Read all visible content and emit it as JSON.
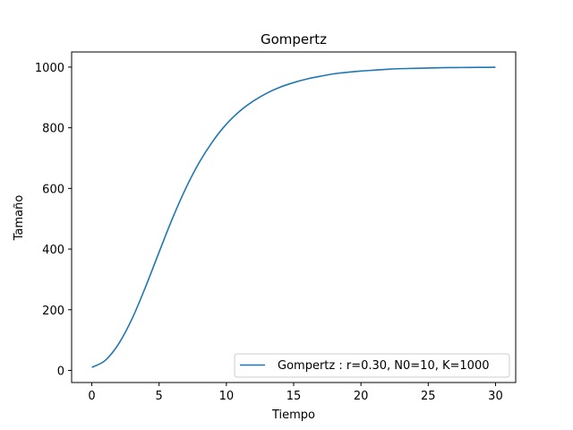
{
  "chart_data": {
    "type": "line",
    "title": "Gompertz",
    "xlabel": "Tiempo",
    "ylabel": "Tamaño",
    "xlim": [
      -1.5,
      31.5
    ],
    "ylim": [
      -40,
      1050
    ],
    "xticks": [
      0,
      5,
      10,
      15,
      20,
      25,
      30
    ],
    "yticks": [
      0,
      200,
      400,
      600,
      800,
      1000
    ],
    "xtick_labels": [
      "0",
      "5",
      "10",
      "15",
      "20",
      "25",
      "30"
    ],
    "ytick_labels": [
      "0",
      "200",
      "400",
      "600",
      "800",
      "1000"
    ],
    "grid": false,
    "legend_position": "lower-right",
    "series": [
      {
        "name": "Gompertz : r=0.30, N0=10, K=1000",
        "color": "#1f77b4",
        "x": [
          0,
          1,
          2,
          3,
          4,
          5,
          6,
          7,
          8,
          9,
          10,
          11,
          12,
          13,
          14,
          15,
          16,
          17,
          18,
          19,
          20,
          21,
          22,
          23,
          24,
          25,
          26,
          27,
          28,
          29,
          30
        ],
        "y": [
          10,
          33,
          88,
          171,
          276,
          390,
          502,
          602,
          687,
          756,
          812,
          855,
          888,
          914,
          934,
          949,
          961,
          970,
          978,
          983,
          987,
          990,
          993,
          995,
          996,
          997,
          998,
          998.5,
          999,
          999.3,
          999.5
        ]
      }
    ]
  }
}
